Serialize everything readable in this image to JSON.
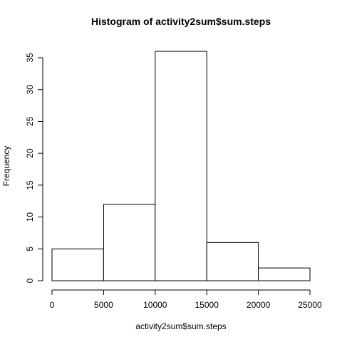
{
  "chart_data": {
    "type": "bar",
    "title": "Histogram of activity2sum$sum.steps",
    "xlabel": "activity2sum$sum.steps",
    "ylabel": "Frequency",
    "bins": [
      {
        "start": 0,
        "end": 5000,
        "count": 5
      },
      {
        "start": 5000,
        "end": 10000,
        "count": 12
      },
      {
        "start": 10000,
        "end": 15000,
        "count": 36
      },
      {
        "start": 15000,
        "end": 20000,
        "count": 6
      },
      {
        "start": 20000,
        "end": 25000,
        "count": 2
      }
    ],
    "xlim": [
      0,
      25000
    ],
    "ylim": [
      0,
      36
    ],
    "x_ticks": [
      0,
      5000,
      10000,
      15000,
      20000,
      25000
    ],
    "x_tick_labels": [
      "0",
      "5000",
      "10000",
      "15000",
      "20000",
      "25000"
    ],
    "y_ticks": [
      0,
      5,
      10,
      15,
      20,
      25,
      30,
      35
    ],
    "y_tick_labels": [
      "0",
      "5",
      "10",
      "15",
      "20",
      "25",
      "30",
      "35"
    ],
    "grid": false,
    "colors": {
      "bar_fill": "#ffffff",
      "bar_stroke": "#000000",
      "axis": "#000000",
      "background": "#ffffff"
    }
  }
}
